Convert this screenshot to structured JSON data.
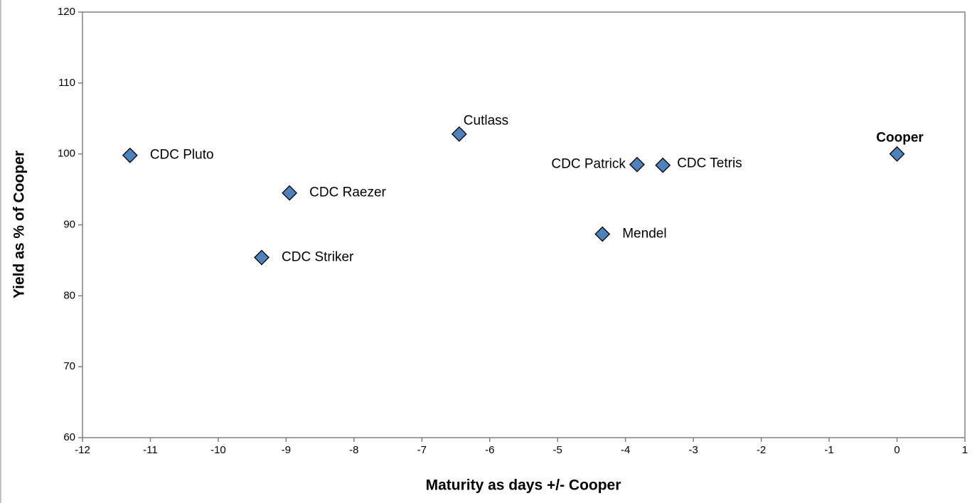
{
  "chart_data": {
    "type": "scatter",
    "xlabel": "Maturity as days +/- Cooper",
    "ylabel": "Yield as % of Cooper",
    "labels": [
      "CDC Pluto",
      "CDC Raezer",
      "CDC Striker",
      "Cutlass",
      "CDC Patrick",
      "CDC Tetris",
      "Mendel",
      "Cooper"
    ],
    "x": [
      -11.3,
      -8.95,
      -9.36,
      -6.45,
      -3.83,
      -3.45,
      -4.34,
      0
    ],
    "values": [
      99.8,
      94.5,
      85.4,
      102.8,
      98.5,
      98.4,
      88.7,
      100
    ],
    "color": "#4f81bd",
    "xlim": [
      -12,
      1
    ],
    "xticks": [
      -12,
      -11,
      -10,
      -9,
      -8,
      -7,
      -6,
      -5,
      -4,
      -3,
      -2,
      -1,
      0,
      1
    ],
    "ylim": [
      60,
      120
    ],
    "yticks": [
      60,
      70,
      80,
      90,
      100,
      110,
      120
    ]
  }
}
